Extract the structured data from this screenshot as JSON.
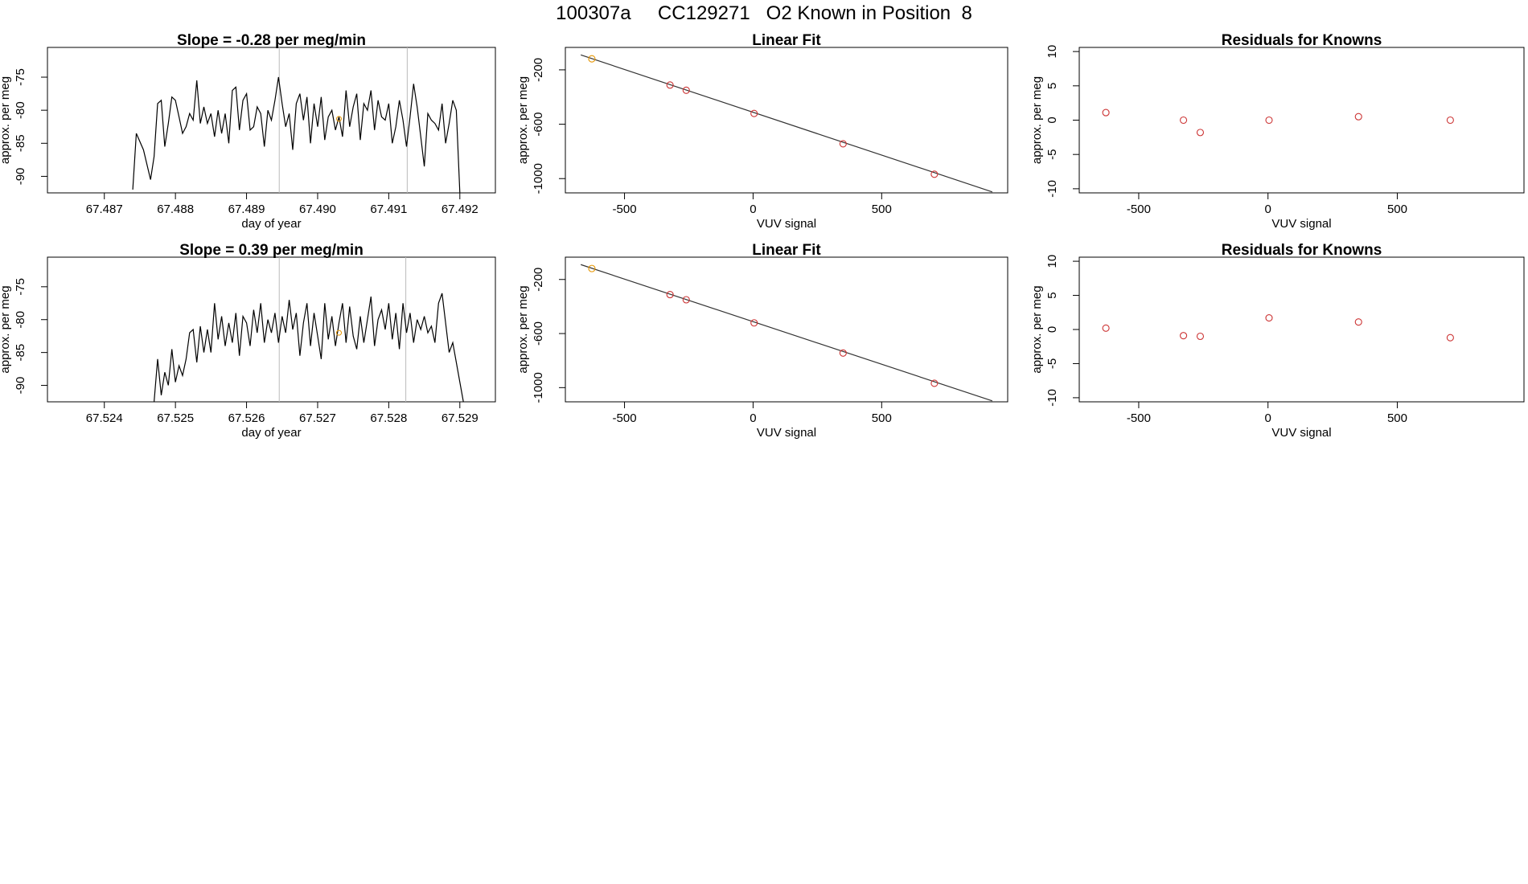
{
  "figure_title": "100307a     CC129271   O2 Known in Position  8",
  "colors": {
    "trace": "#000000",
    "known_point": "#cc3333",
    "highlight_point": "#e69500",
    "marker_line": "#bbbbbb",
    "fit_line": "#333333"
  },
  "chart_data": [
    {
      "type": "line",
      "title": "Slope =  -0.28  per meg/min",
      "xlabel": "day of year",
      "ylabel": "approx. per meg",
      "xlim": [
        67.4862,
        67.4925
      ],
      "ylim": [
        -92.5,
        -70.5
      ],
      "xticks": [
        "67.487",
        "67.488",
        "67.489",
        "67.490",
        "67.491",
        "67.492"
      ],
      "yticks": [
        "-90",
        "-85",
        "-80",
        "-75"
      ],
      "vlines": [
        67.48946,
        67.49126
      ],
      "highlight": {
        "x": 67.4903,
        "y": -81.3
      },
      "x": [
        67.4874,
        67.48745,
        67.48755,
        67.48765,
        67.4877,
        67.48775,
        67.4878,
        67.48785,
        67.4879,
        67.48795,
        67.488,
        67.48805,
        67.4881,
        67.48815,
        67.4882,
        67.48825,
        67.4883,
        67.48835,
        67.4884,
        67.48845,
        67.4885,
        67.48855,
        67.4886,
        67.48865,
        67.4887,
        67.48875,
        67.4888,
        67.48885,
        67.4889,
        67.48895,
        67.489,
        67.48905,
        67.4891,
        67.48915,
        67.4892,
        67.48925,
        67.4893,
        67.48935,
        67.4894,
        67.48945,
        67.4895,
        67.48955,
        67.4896,
        67.48965,
        67.4897,
        67.48975,
        67.4898,
        67.48985,
        67.4899,
        67.48995,
        67.49,
        67.49005,
        67.4901,
        67.49015,
        67.4902,
        67.49025,
        67.4903,
        67.49035,
        67.4904,
        67.49045,
        67.4905,
        67.49055,
        67.4906,
        67.49065,
        67.4907,
        67.49075,
        67.4908,
        67.49085,
        67.4909,
        67.49095,
        67.491,
        67.49105,
        67.4911,
        67.49115,
        67.4912,
        67.49125,
        67.4913,
        67.49135,
        67.4914,
        67.49145,
        67.4915,
        67.49155,
        67.4916,
        67.49165,
        67.4917,
        67.49175,
        67.4918,
        67.49185,
        67.4919,
        67.49195,
        67.492
      ],
      "y": [
        -92,
        -83.5,
        -86,
        -90.5,
        -87,
        -79,
        -78.5,
        -85.5,
        -82,
        -78,
        -78.5,
        -81,
        -83.5,
        -82.5,
        -80.5,
        -81.5,
        -75.5,
        -82,
        -79.5,
        -82,
        -80.5,
        -84,
        -80,
        -83.5,
        -80.5,
        -85,
        -77,
        -76.5,
        -83,
        -78.5,
        -77.5,
        -83,
        -82.5,
        -79.5,
        -80.5,
        -85.5,
        -80,
        -81.5,
        -78.5,
        -75,
        -79,
        -82.5,
        -80.5,
        -86,
        -79,
        -77.5,
        -81.5,
        -78,
        -85,
        -79,
        -82.5,
        -78,
        -84.5,
        -81,
        -80,
        -83,
        -81,
        -84,
        -77,
        -82.5,
        -79.5,
        -77.5,
        -84.5,
        -79,
        -80,
        -77,
        -83,
        -78.5,
        -81,
        -81.5,
        -79,
        -85,
        -82.5,
        -78.5,
        -81.5,
        -85.5,
        -81,
        -76,
        -79.5,
        -84,
        -88.5,
        -80.5,
        -81.5,
        -82,
        -83,
        -79,
        -85,
        -82,
        -78.5,
        -80,
        -92.5
      ]
    },
    {
      "type": "scatter",
      "title": "Linear Fit",
      "xlabel": "VUV signal",
      "ylabel": "approx. per meg",
      "xlim": [
        -730,
        990
      ],
      "ylim": [
        -1105,
        -35
      ],
      "xticks": [
        "-500",
        "0",
        "500"
      ],
      "yticks": [
        "-1000",
        "-600",
        "-200"
      ],
      "x": [
        -627,
        -323,
        -260,
        4,
        350,
        705
      ],
      "y": [
        -119,
        -312,
        -350,
        -521,
        -744,
        -968
      ],
      "highlight_index": 0,
      "fit_line": {
        "x": [
          -670,
          930
        ],
        "y": [
          -90,
          -1098
        ]
      }
    },
    {
      "type": "scatter",
      "title": "Residuals for Knowns",
      "xlabel": "VUV signal",
      "ylabel": "approx. per meg",
      "xlim": [
        -730,
        990
      ],
      "ylim": [
        -10.6,
        10.6
      ],
      "xticks": [
        "-500",
        "0",
        "500"
      ],
      "yticks": [
        "-10",
        "-5",
        "0",
        "5",
        "10"
      ],
      "x": [
        -627,
        -327,
        -262,
        4,
        350,
        705
      ],
      "y": [
        1.1,
        0.0,
        -1.8,
        0.0,
        0.5,
        0.0
      ]
    },
    {
      "type": "line",
      "title": "Slope =  0.39  per meg/min",
      "xlabel": "day of year",
      "ylabel": "approx. per meg",
      "xlim": [
        67.5232,
        67.5295
      ],
      "ylim": [
        -92.5,
        -70.5
      ],
      "xticks": [
        "67.524",
        "67.525",
        "67.526",
        "67.527",
        "67.528",
        "67.529"
      ],
      "yticks": [
        "-90",
        "-85",
        "-80",
        "-75"
      ],
      "vlines": [
        67.52646,
        67.52824
      ],
      "highlight": {
        "x": 67.5273,
        "y": -82
      },
      "x": [
        67.5247,
        67.52475,
        67.5248,
        67.52485,
        67.5249,
        67.52495,
        67.525,
        67.52505,
        67.5251,
        67.52515,
        67.5252,
        67.52525,
        67.5253,
        67.52535,
        67.5254,
        67.52545,
        67.5255,
        67.52555,
        67.5256,
        67.52565,
        67.5257,
        67.52575,
        67.5258,
        67.52585,
        67.5259,
        67.52595,
        67.526,
        67.52605,
        67.5261,
        67.52615,
        67.5262,
        67.52625,
        67.5263,
        67.52635,
        67.5264,
        67.52645,
        67.5265,
        67.52655,
        67.5266,
        67.52665,
        67.5267,
        67.52675,
        67.5268,
        67.52685,
        67.5269,
        67.52695,
        67.527,
        67.52705,
        67.5271,
        67.52715,
        67.5272,
        67.52725,
        67.5273,
        67.52735,
        67.5274,
        67.52745,
        67.5275,
        67.52755,
        67.5276,
        67.52765,
        67.5277,
        67.52775,
        67.5278,
        67.52785,
        67.5279,
        67.52795,
        67.528,
        67.52805,
        67.5281,
        67.52815,
        67.5282,
        67.52825,
        67.5283,
        67.52835,
        67.5284,
        67.52845,
        67.5285,
        67.52855,
        67.5286,
        67.52865,
        67.5287,
        67.52875,
        67.5288,
        67.52885,
        67.5289,
        67.52895,
        67.529,
        67.52905
      ],
      "y": [
        -92.5,
        -86,
        -91.5,
        -88,
        -90,
        -84.5,
        -89.5,
        -87,
        -88.5,
        -86,
        -82,
        -81.5,
        -86.5,
        -81,
        -85,
        -81.5,
        -85,
        -77.5,
        -83,
        -79.5,
        -84,
        -80.5,
        -83.5,
        -79,
        -85.5,
        -79.5,
        -80.5,
        -84,
        -78.5,
        -82,
        -77.5,
        -83.5,
        -80,
        -82,
        -79,
        -83.5,
        -79.5,
        -82,
        -77,
        -81.5,
        -79,
        -85.5,
        -80.5,
        -77.5,
        -84,
        -79,
        -82.5,
        -86,
        -77.5,
        -83,
        -79.5,
        -84,
        -80.5,
        -77.5,
        -83.5,
        -78,
        -82.5,
        -84.5,
        -79.5,
        -83.5,
        -80,
        -76.5,
        -84,
        -80,
        -78.5,
        -81.5,
        -77.5,
        -83,
        -79,
        -84.5,
        -77.5,
        -82,
        -79,
        -83.5,
        -80,
        -81.5,
        -79.5,
        -82,
        -81,
        -83.5,
        -77.5,
        -76,
        -80.5,
        -85,
        -83.5,
        -86.5,
        -89.5,
        -92.5
      ]
    },
    {
      "type": "scatter",
      "title": "Linear Fit",
      "xlabel": "VUV signal",
      "ylabel": "approx. per meg",
      "xlim": [
        -730,
        990
      ],
      "ylim": [
        -1105,
        -35
      ],
      "xticks": [
        "-500",
        "0",
        "500"
      ],
      "yticks": [
        "-1000",
        "-600",
        "-200"
      ],
      "x": [
        -627,
        -323,
        -260,
        4,
        350,
        705
      ],
      "y": [
        -119,
        -312,
        -350,
        -521,
        -744,
        -968
      ],
      "highlight_index": 0,
      "fit_line": {
        "x": [
          -670,
          930
        ],
        "y": [
          -90,
          -1098
        ]
      }
    },
    {
      "type": "scatter",
      "title": "Residuals for Knowns",
      "xlabel": "VUV signal",
      "ylabel": "approx. per meg",
      "xlim": [
        -730,
        990
      ],
      "ylim": [
        -10.6,
        10.6
      ],
      "xticks": [
        "-500",
        "0",
        "500"
      ],
      "yticks": [
        "-10",
        "-5",
        "0",
        "5",
        "10"
      ],
      "x": [
        -627,
        -327,
        -262,
        4,
        350,
        705
      ],
      "y": [
        0.2,
        -0.9,
        -1.0,
        1.7,
        1.1,
        -1.2
      ]
    }
  ]
}
